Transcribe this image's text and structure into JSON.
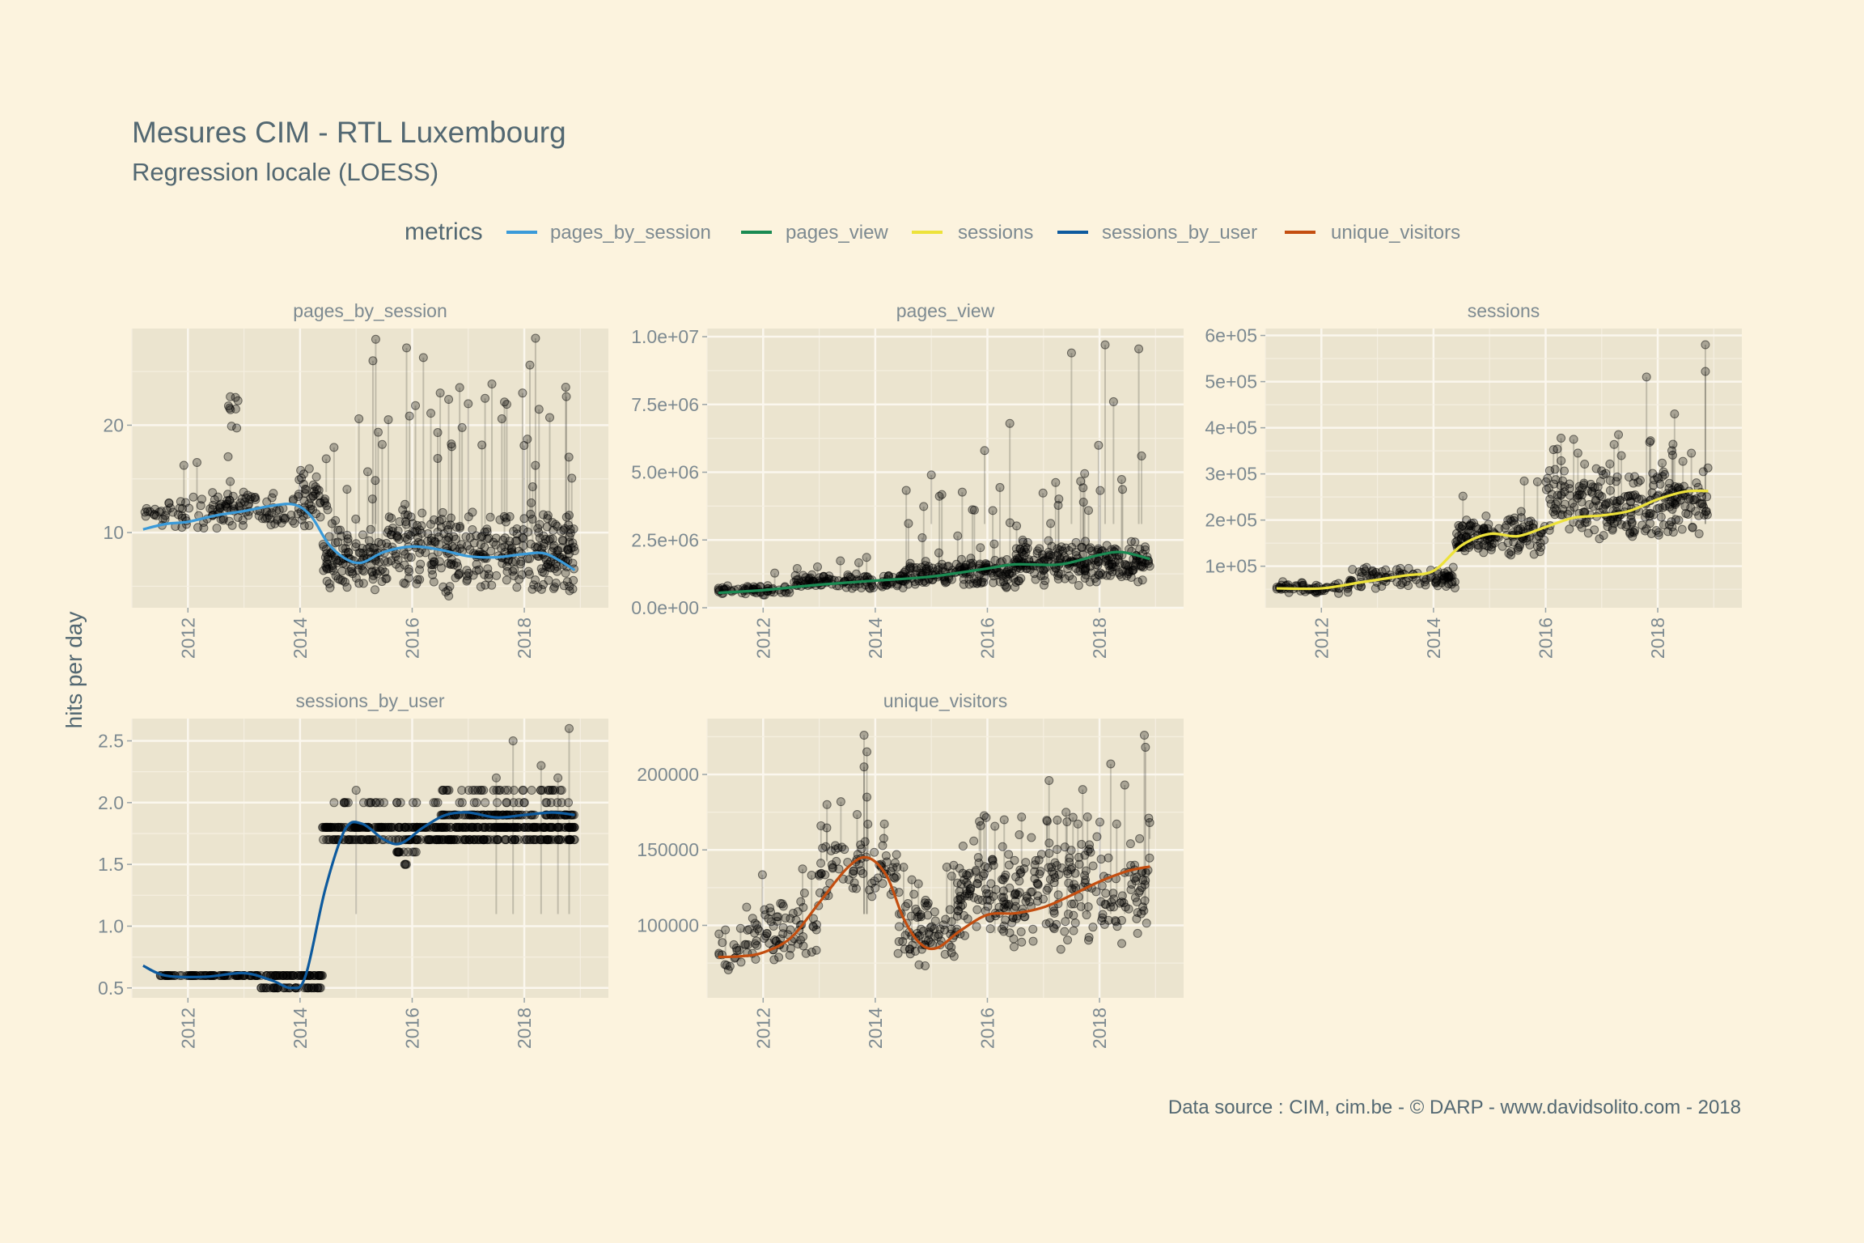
{
  "title": "Mesures CIM - RTL Luxembourg",
  "subtitle": "Regression locale (LOESS)",
  "caption": "Data source : CIM, cim.be - © DARP - www.davidsolito.com - 2018",
  "ylabel": "hits per day",
  "legend": {
    "title": "metrics",
    "items": [
      {
        "label": "pages_by_session",
        "color": "#3a9ad9"
      },
      {
        "label": "pages_view",
        "color": "#1a8a52"
      },
      {
        "label": "sessions",
        "color": "#ede23a"
      },
      {
        "label": "sessions_by_user",
        "color": "#0d5a9e"
      },
      {
        "label": "unique_visitors",
        "color": "#c44e10"
      }
    ]
  },
  "colors": {
    "background": "#fcf3de",
    "panel": "#ebe4cf",
    "points": "#000000",
    "text": "#536872",
    "axis_text": "#7d8a91"
  },
  "chart_data": [
    {
      "type": "scatter",
      "panel": "pages_by_session",
      "series_color": "#3a9ad9",
      "x_ticks": [
        "2012",
        "2014",
        "2016",
        "2018"
      ],
      "xlim": [
        2011.0,
        2019.5
      ],
      "ylim": [
        3,
        29
      ],
      "y_ticks": [
        {
          "v": 10,
          "label": "10"
        },
        {
          "v": 20,
          "label": "20"
        }
      ],
      "smooth": [
        [
          2011.2,
          10.3
        ],
        [
          2011.6,
          10.8
        ],
        [
          2012.0,
          11.0
        ],
        [
          2012.5,
          11.6
        ],
        [
          2013.0,
          12.0
        ],
        [
          2013.5,
          12.5
        ],
        [
          2013.9,
          12.6
        ],
        [
          2014.2,
          11.5
        ],
        [
          2014.5,
          9.0
        ],
        [
          2014.8,
          7.6
        ],
        [
          2015.1,
          7.2
        ],
        [
          2015.5,
          8.2
        ],
        [
          2016.0,
          8.7
        ],
        [
          2016.5,
          8.4
        ],
        [
          2017.0,
          7.8
        ],
        [
          2017.5,
          7.7
        ],
        [
          2018.0,
          8.0
        ],
        [
          2018.4,
          8.0
        ],
        [
          2018.9,
          6.5
        ]
      ],
      "segments": [
        {
          "x0": 2011.2,
          "x1": 2011.5,
          "ylo": 11.0,
          "yhi": 12.5,
          "n": 10,
          "ol": 0.02,
          "ohi": 13.5
        },
        {
          "x0": 2011.5,
          "x1": 2014.5,
          "ylo": 10.0,
          "yhi": 14.0,
          "n": 150,
          "ol": 0.03,
          "ohi": 17
        },
        {
          "x0": 2012.7,
          "x1": 2012.9,
          "ylo": 16.0,
          "yhi": 26.0,
          "n": 10,
          "ol": 0,
          "ohi": 26
        },
        {
          "x0": 2014.0,
          "x1": 2014.4,
          "ylo": 12.0,
          "yhi": 16.5,
          "n": 20,
          "ol": 0,
          "ohi": 16.5
        },
        {
          "x0": 2014.4,
          "x1": 2015.5,
          "ylo": 4.5,
          "yhi": 10.5,
          "n": 120,
          "ol": 0.1,
          "ohi": 20
        },
        {
          "x0": 2015.5,
          "x1": 2018.9,
          "ylo": 4.0,
          "yhi": 12.5,
          "n": 380,
          "ol": 0.08,
          "ohi": 24
        }
      ],
      "spikes": [
        [
          2015.35,
          28
        ],
        [
          2015.3,
          26
        ],
        [
          2015.9,
          27.2
        ],
        [
          2016.2,
          26.3
        ],
        [
          2016.5,
          23
        ],
        [
          2017.0,
          22
        ],
        [
          2017.3,
          22.5
        ],
        [
          2018.2,
          28.1
        ],
        [
          2018.1,
          25.6
        ],
        [
          2015.05,
          20.6
        ],
        [
          2017.6,
          20.6
        ]
      ]
    },
    {
      "type": "scatter",
      "panel": "pages_view",
      "series_color": "#1a8a52",
      "x_ticks": [
        "2012",
        "2014",
        "2016",
        "2018"
      ],
      "xlim": [
        2011.0,
        2019.5
      ],
      "ylim": [
        0,
        10300000
      ],
      "y_ticks": [
        {
          "v": 0,
          "label": "0.0e+00"
        },
        {
          "v": 2500000,
          "label": "2.5e+06"
        },
        {
          "v": 5000000,
          "label": "5.0e+06"
        },
        {
          "v": 7500000,
          "label": "7.5e+06"
        },
        {
          "v": 10000000,
          "label": "1.0e+07"
        }
      ],
      "smooth": [
        [
          2011.2,
          550000
        ],
        [
          2012.0,
          650000
        ],
        [
          2013.0,
          850000
        ],
        [
          2014.0,
          1000000
        ],
        [
          2015.0,
          1150000
        ],
        [
          2016.0,
          1450000
        ],
        [
          2016.5,
          1600000
        ],
        [
          2017.3,
          1600000
        ],
        [
          2018.0,
          1950000
        ],
        [
          2018.4,
          2050000
        ],
        [
          2018.9,
          1800000
        ]
      ],
      "segments": [
        {
          "x0": 2011.2,
          "x1": 2012.5,
          "ylo": 450000,
          "yhi": 850000,
          "n": 60,
          "ol": 0.02,
          "ohi": 1500000
        },
        {
          "x0": 2012.5,
          "x1": 2014.5,
          "ylo": 650000,
          "yhi": 1300000,
          "n": 120,
          "ol": 0.04,
          "ohi": 2000000
        },
        {
          "x0": 2014.5,
          "x1": 2016.5,
          "ylo": 700000,
          "yhi": 1900000,
          "n": 180,
          "ol": 0.07,
          "ohi": 4500000
        },
        {
          "x0": 2016.5,
          "x1": 2018.9,
          "ylo": 800000,
          "yhi": 2600000,
          "n": 260,
          "ol": 0.08,
          "ohi": 6000000
        }
      ],
      "spikes": [
        [
          2017.5,
          9400000
        ],
        [
          2018.1,
          9700000
        ],
        [
          2018.7,
          9550000
        ],
        [
          2016.4,
          6800000
        ],
        [
          2018.25,
          7600000
        ],
        [
          2018.75,
          5600000
        ],
        [
          2015.95,
          5800000
        ],
        [
          2015.0,
          4900000
        ]
      ]
    },
    {
      "type": "scatter",
      "panel": "sessions",
      "series_color": "#ede23a",
      "x_ticks": [
        "2012",
        "2014",
        "2016",
        "2018"
      ],
      "xlim": [
        2011.0,
        2019.5
      ],
      "ylim": [
        10000,
        615000
      ],
      "y_ticks": [
        {
          "v": 100000,
          "label": "1e+05"
        },
        {
          "v": 200000,
          "label": "2e+05"
        },
        {
          "v": 300000,
          "label": "3e+05"
        },
        {
          "v": 400000,
          "label": "4e+05"
        },
        {
          "v": 500000,
          "label": "5e+05"
        },
        {
          "v": 600000,
          "label": "6e+05"
        }
      ],
      "smooth": [
        [
          2011.2,
          52000
        ],
        [
          2012.0,
          52000
        ],
        [
          2012.7,
          65000
        ],
        [
          2013.5,
          80000
        ],
        [
          2014.0,
          90000
        ],
        [
          2014.5,
          145000
        ],
        [
          2015.0,
          170000
        ],
        [
          2015.5,
          165000
        ],
        [
          2016.0,
          185000
        ],
        [
          2016.5,
          205000
        ],
        [
          2017.0,
          210000
        ],
        [
          2017.5,
          220000
        ],
        [
          2018.0,
          245000
        ],
        [
          2018.5,
          262000
        ],
        [
          2018.9,
          263000
        ]
      ],
      "segments": [
        {
          "x0": 2011.2,
          "x1": 2012.5,
          "ylo": 38000,
          "yhi": 68000,
          "n": 60,
          "ol": 0,
          "ohi": 80000
        },
        {
          "x0": 2012.5,
          "x1": 2014.4,
          "ylo": 50000,
          "yhi": 100000,
          "n": 100,
          "ol": 0,
          "ohi": 110000
        },
        {
          "x0": 2014.4,
          "x1": 2016.0,
          "ylo": 120000,
          "yhi": 210000,
          "n": 150,
          "ol": 0.04,
          "ohi": 290000
        },
        {
          "x0": 2016.0,
          "x1": 2018.9,
          "ylo": 150000,
          "yhi": 320000,
          "n": 280,
          "ol": 0.05,
          "ohi": 390000
        }
      ],
      "spikes": [
        [
          2018.85,
          580000
        ],
        [
          2017.8,
          510000
        ],
        [
          2018.85,
          522000
        ],
        [
          2018.3,
          430000
        ],
        [
          2018.6,
          345000
        ],
        [
          2016.5,
          375000
        ],
        [
          2017.3,
          385000
        ]
      ]
    },
    {
      "type": "scatter",
      "panel": "sessions_by_user",
      "series_color": "#0d5a9e",
      "x_ticks": [
        "2012",
        "2014",
        "2016",
        "2018"
      ],
      "xlim": [
        2011.0,
        2019.5
      ],
      "ylim": [
        0.42,
        2.68
      ],
      "y_ticks": [
        {
          "v": 0.5,
          "label": "0.5"
        },
        {
          "v": 1.0,
          "label": "1.0"
        },
        {
          "v": 1.5,
          "label": "1.5"
        },
        {
          "v": 2.0,
          "label": "2.0"
        },
        {
          "v": 2.5,
          "label": "2.5"
        }
      ],
      "smooth": [
        [
          2011.2,
          0.68
        ],
        [
          2011.6,
          0.6
        ],
        [
          2012.3,
          0.59
        ],
        [
          2013.0,
          0.62
        ],
        [
          2013.5,
          0.56
        ],
        [
          2013.85,
          0.5
        ],
        [
          2014.1,
          0.6
        ],
        [
          2014.45,
          1.3
        ],
        [
          2014.8,
          1.78
        ],
        [
          2015.1,
          1.83
        ],
        [
          2015.5,
          1.7
        ],
        [
          2015.8,
          1.67
        ],
        [
          2016.2,
          1.8
        ],
        [
          2016.6,
          1.9
        ],
        [
          2017.0,
          1.92
        ],
        [
          2017.5,
          1.88
        ],
        [
          2018.0,
          1.9
        ],
        [
          2018.5,
          1.92
        ],
        [
          2018.9,
          1.9
        ]
      ],
      "levels": [
        {
          "x0": 2011.5,
          "x1": 2014.4,
          "y": 0.6,
          "n": 150
        },
        {
          "x0": 2013.3,
          "x1": 2014.4,
          "y": 0.5,
          "n": 40
        },
        {
          "x0": 2014.4,
          "x1": 2018.9,
          "y": 1.7,
          "n": 170
        },
        {
          "x0": 2014.4,
          "x1": 2018.9,
          "y": 1.8,
          "n": 260
        },
        {
          "x0": 2015.7,
          "x1": 2016.1,
          "y": 1.6,
          "n": 12
        },
        {
          "x0": 2015.8,
          "x1": 2016.0,
          "y": 1.5,
          "n": 4
        },
        {
          "x0": 2016.5,
          "x1": 2018.9,
          "y": 1.9,
          "n": 100
        },
        {
          "x0": 2014.6,
          "x1": 2018.9,
          "y": 2.0,
          "n": 40
        },
        {
          "x0": 2016.5,
          "x1": 2018.9,
          "y": 2.1,
          "n": 35
        }
      ],
      "spikes": [
        [
          2017.8,
          2.5
        ],
        [
          2018.8,
          2.6
        ],
        [
          2018.3,
          2.3
        ],
        [
          2018.6,
          2.2
        ],
        [
          2017.5,
          2.2
        ],
        [
          2015.0,
          2.1
        ]
      ]
    },
    {
      "type": "scatter",
      "panel": "unique_visitors",
      "series_color": "#c44e10",
      "x_ticks": [
        "2012",
        "2014",
        "2016",
        "2018"
      ],
      "xlim": [
        2011.0,
        2019.5
      ],
      "ylim": [
        52000,
        237000
      ],
      "y_ticks": [
        {
          "v": 100000,
          "label": "100000"
        },
        {
          "v": 150000,
          "label": "150000"
        },
        {
          "v": 200000,
          "label": "200000"
        }
      ],
      "smooth": [
        [
          2011.2,
          79000
        ],
        [
          2011.6,
          79500
        ],
        [
          2012.0,
          82000
        ],
        [
          2012.5,
          92000
        ],
        [
          2013.0,
          115000
        ],
        [
          2013.5,
          138000
        ],
        [
          2013.85,
          145000
        ],
        [
          2014.2,
          133000
        ],
        [
          2014.5,
          105000
        ],
        [
          2014.8,
          88000
        ],
        [
          2015.1,
          85000
        ],
        [
          2015.5,
          96000
        ],
        [
          2016.0,
          107000
        ],
        [
          2016.5,
          108000
        ],
        [
          2017.0,
          112000
        ],
        [
          2017.5,
          120000
        ],
        [
          2018.0,
          129000
        ],
        [
          2018.5,
          136000
        ],
        [
          2018.9,
          139000
        ]
      ],
      "segments": [
        {
          "x0": 2011.2,
          "x1": 2011.7,
          "ylo": 68000,
          "yhi": 92000,
          "n": 20,
          "ol": 0.05,
          "ohi": 112000
        },
        {
          "x0": 2011.7,
          "x1": 2013.0,
          "ylo": 70000,
          "yhi": 125000,
          "n": 80,
          "ol": 0.03,
          "ohi": 140000
        },
        {
          "x0": 2013.0,
          "x1": 2014.4,
          "ylo": 115000,
          "yhi": 162000,
          "n": 80,
          "ol": 0.06,
          "ohi": 185000
        },
        {
          "x0": 2014.4,
          "x1": 2015.5,
          "ylo": 68000,
          "yhi": 125000,
          "n": 90,
          "ol": 0.06,
          "ohi": 140000
        },
        {
          "x0": 2015.5,
          "x1": 2018.9,
          "ylo": 80000,
          "yhi": 165000,
          "n": 300,
          "ol": 0.08,
          "ohi": 175000
        }
      ],
      "spikes": [
        [
          2013.8,
          226000
        ],
        [
          2013.85,
          215000
        ],
        [
          2013.8,
          205000
        ],
        [
          2013.85,
          185000
        ],
        [
          2018.8,
          226000
        ],
        [
          2018.82,
          218000
        ],
        [
          2018.2,
          207000
        ],
        [
          2017.1,
          196000
        ],
        [
          2017.7,
          190000
        ],
        [
          2018.45,
          193000
        ],
        [
          2016.3,
          170000
        ]
      ]
    }
  ]
}
